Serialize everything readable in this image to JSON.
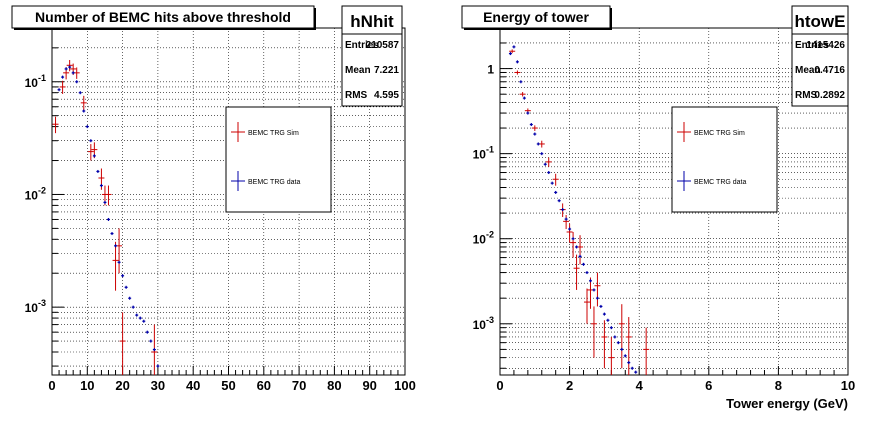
{
  "chart_data": [
    {
      "type": "scatter",
      "name": "hNhit",
      "title": "Number of BEMC hits above threshold",
      "xlabel": "",
      "ylabel": "",
      "xlim": [
        0,
        100
      ],
      "ylim": [
        0.00025,
        0.3
      ],
      "yscale": "log",
      "grid": true,
      "xticks": [
        "0",
        "10",
        "20",
        "30",
        "40",
        "50",
        "60",
        "70",
        "80",
        "90",
        "100"
      ],
      "yticks": [
        "10^-3",
        "10^-2",
        "10^-1"
      ],
      "stats": {
        "name": "hNhit",
        "rows": [
          {
            "label": "Entries",
            "value": "210587"
          },
          {
            "label": "Mean",
            "value": "7.221"
          },
          {
            "label": "RMS",
            "value": "4.595"
          }
        ]
      },
      "legend": {
        "placement": "middle",
        "entries": [
          {
            "name": "BEMC TRG Sim",
            "color": "#cc0000"
          },
          {
            "name": "BEMC TRG data",
            "color": "#0000aa"
          }
        ]
      },
      "series": [
        {
          "name": "BEMC TRG Sim",
          "color": "#cc0000",
          "points": [
            {
              "x": 1,
              "y": 0.042,
              "err": 0.007
            },
            {
              "x": 3,
              "y": 0.09,
              "err": 0.012
            },
            {
              "x": 4,
              "y": 0.12,
              "err": 0.015
            },
            {
              "x": 5,
              "y": 0.14,
              "err": 0.016
            },
            {
              "x": 6,
              "y": 0.13,
              "err": 0.015
            },
            {
              "x": 7,
              "y": 0.12,
              "err": 0.014
            },
            {
              "x": 9,
              "y": 0.065,
              "err": 0.01
            },
            {
              "x": 11,
              "y": 0.024,
              "err": 0.004
            },
            {
              "x": 12,
              "y": 0.025,
              "err": 0.004
            },
            {
              "x": 14,
              "y": 0.014,
              "err": 0.003
            },
            {
              "x": 15,
              "y": 0.01,
              "err": 0.002
            },
            {
              "x": 16,
              "y": 0.01,
              "err": 0.002
            },
            {
              "x": 18,
              "y": 0.0026,
              "err": 0.0012
            },
            {
              "x": 19,
              "y": 0.0035,
              "err": 0.0015
            },
            {
              "x": 20,
              "y": 0.0005,
              "err": 0.0004
            },
            {
              "x": 29,
              "y": 0.0004,
              "err": 0.0003
            }
          ]
        },
        {
          "name": "BEMC TRG data",
          "color": "#0000aa",
          "points": [
            {
              "x": 2,
              "y": 0.085
            },
            {
              "x": 3,
              "y": 0.11
            },
            {
              "x": 4,
              "y": 0.13
            },
            {
              "x": 5,
              "y": 0.135
            },
            {
              "x": 6,
              "y": 0.12
            },
            {
              "x": 7,
              "y": 0.1
            },
            {
              "x": 8,
              "y": 0.08
            },
            {
              "x": 9,
              "y": 0.055
            },
            {
              "x": 10,
              "y": 0.04
            },
            {
              "x": 11,
              "y": 0.03
            },
            {
              "x": 12,
              "y": 0.022
            },
            {
              "x": 13,
              "y": 0.016
            },
            {
              "x": 14,
              "y": 0.012
            },
            {
              "x": 15,
              "y": 0.0085
            },
            {
              "x": 16,
              "y": 0.006
            },
            {
              "x": 17,
              "y": 0.0045
            },
            {
              "x": 18,
              "y": 0.0035
            },
            {
              "x": 19,
              "y": 0.0025
            },
            {
              "x": 20,
              "y": 0.0019
            },
            {
              "x": 21,
              "y": 0.0015
            },
            {
              "x": 22,
              "y": 0.0012
            },
            {
              "x": 23,
              "y": 0.001
            },
            {
              "x": 24,
              "y": 0.00085
            },
            {
              "x": 25,
              "y": 0.0008
            },
            {
              "x": 26,
              "y": 0.00075
            },
            {
              "x": 27,
              "y": 0.0006
            },
            {
              "x": 28,
              "y": 0.0005
            },
            {
              "x": 29,
              "y": 0.00042
            },
            {
              "x": 30,
              "y": 0.0003
            }
          ]
        }
      ]
    },
    {
      "type": "scatter",
      "name": "htowE",
      "title": "Energy of tower",
      "xlabel": "Tower energy (GeV)",
      "ylabel": "",
      "xlim": [
        0,
        10
      ],
      "ylim": [
        0.00025,
        3
      ],
      "yscale": "log",
      "grid": true,
      "xticks": [
        "0",
        "2",
        "4",
        "6",
        "8",
        "10"
      ],
      "yticks": [
        "10^-3",
        "10^-2",
        "10^-1",
        "1"
      ],
      "stats": {
        "name": "htowE",
        "rows": [
          {
            "label": "Entries",
            "value": "1415426"
          },
          {
            "label": "Mean",
            "value": "0.4716"
          },
          {
            "label": "RMS",
            "value": "0.2892"
          }
        ]
      },
      "legend": {
        "placement": "middle",
        "entries": [
          {
            "name": "BEMC TRG Sim",
            "color": "#cc0000"
          },
          {
            "name": "BEMC TRG data",
            "color": "#0000aa"
          }
        ]
      },
      "series": [
        {
          "name": "BEMC TRG Sim",
          "color": "#cc0000",
          "points": [
            {
              "x": 0.35,
              "y": 1.6,
              "err": 0.08
            },
            {
              "x": 0.5,
              "y": 0.9,
              "err": 0.05
            },
            {
              "x": 0.65,
              "y": 0.5,
              "err": 0.03
            },
            {
              "x": 0.8,
              "y": 0.32,
              "err": 0.02
            },
            {
              "x": 1.0,
              "y": 0.2,
              "err": 0.015
            },
            {
              "x": 1.2,
              "y": 0.13,
              "err": 0.012
            },
            {
              "x": 1.4,
              "y": 0.08,
              "err": 0.01
            },
            {
              "x": 1.6,
              "y": 0.05,
              "err": 0.008
            },
            {
              "x": 1.8,
              "y": 0.022,
              "err": 0.004
            },
            {
              "x": 1.9,
              "y": 0.016,
              "err": 0.003
            },
            {
              "x": 2.0,
              "y": 0.012,
              "err": 0.003
            },
            {
              "x": 2.1,
              "y": 0.009,
              "err": 0.003
            },
            {
              "x": 2.2,
              "y": 0.0045,
              "err": 0.002
            },
            {
              "x": 2.3,
              "y": 0.008,
              "err": 0.003
            },
            {
              "x": 2.5,
              "y": 0.0018,
              "err": 0.0008
            },
            {
              "x": 2.6,
              "y": 0.0025,
              "err": 0.001
            },
            {
              "x": 2.7,
              "y": 0.001,
              "err": 0.0006
            },
            {
              "x": 2.8,
              "y": 0.0028,
              "err": 0.0012
            },
            {
              "x": 3.0,
              "y": 0.0007,
              "err": 0.0004
            },
            {
              "x": 3.2,
              "y": 0.0004,
              "err": 0.0003
            },
            {
              "x": 3.5,
              "y": 0.001,
              "err": 0.0007
            },
            {
              "x": 3.7,
              "y": 0.0007,
              "err": 0.0005
            },
            {
              "x": 4.2,
              "y": 0.0005,
              "err": 0.0004
            }
          ]
        },
        {
          "name": "BEMC TRG data",
          "color": "#0000aa",
          "points": [
            {
              "x": 0.3,
              "y": 1.5
            },
            {
              "x": 0.4,
              "y": 1.8
            },
            {
              "x": 0.5,
              "y": 1.2
            },
            {
              "x": 0.6,
              "y": 0.7
            },
            {
              "x": 0.7,
              "y": 0.45
            },
            {
              "x": 0.8,
              "y": 0.3
            },
            {
              "x": 0.9,
              "y": 0.22
            },
            {
              "x": 1.0,
              "y": 0.17
            },
            {
              "x": 1.1,
              "y": 0.13
            },
            {
              "x": 1.2,
              "y": 0.1
            },
            {
              "x": 1.3,
              "y": 0.075
            },
            {
              "x": 1.4,
              "y": 0.06
            },
            {
              "x": 1.5,
              "y": 0.045
            },
            {
              "x": 1.6,
              "y": 0.035
            },
            {
              "x": 1.7,
              "y": 0.028
            },
            {
              "x": 1.8,
              "y": 0.022
            },
            {
              "x": 1.9,
              "y": 0.017
            },
            {
              "x": 2.0,
              "y": 0.013
            },
            {
              "x": 2.1,
              "y": 0.01
            },
            {
              "x": 2.2,
              "y": 0.008
            },
            {
              "x": 2.3,
              "y": 0.0062
            },
            {
              "x": 2.4,
              "y": 0.005
            },
            {
              "x": 2.5,
              "y": 0.004
            },
            {
              "x": 2.6,
              "y": 0.0032
            },
            {
              "x": 2.7,
              "y": 0.0025
            },
            {
              "x": 2.8,
              "y": 0.002
            },
            {
              "x": 2.9,
              "y": 0.0016
            },
            {
              "x": 3.0,
              "y": 0.0013
            },
            {
              "x": 3.1,
              "y": 0.0011
            },
            {
              "x": 3.2,
              "y": 0.0009
            },
            {
              "x": 3.3,
              "y": 0.0007
            },
            {
              "x": 3.4,
              "y": 0.0006
            },
            {
              "x": 3.5,
              "y": 0.0005
            },
            {
              "x": 3.6,
              "y": 0.00042
            },
            {
              "x": 3.7,
              "y": 0.00035
            },
            {
              "x": 3.8,
              "y": 0.0003
            },
            {
              "x": 3.9,
              "y": 0.00027
            }
          ]
        }
      ]
    }
  ]
}
